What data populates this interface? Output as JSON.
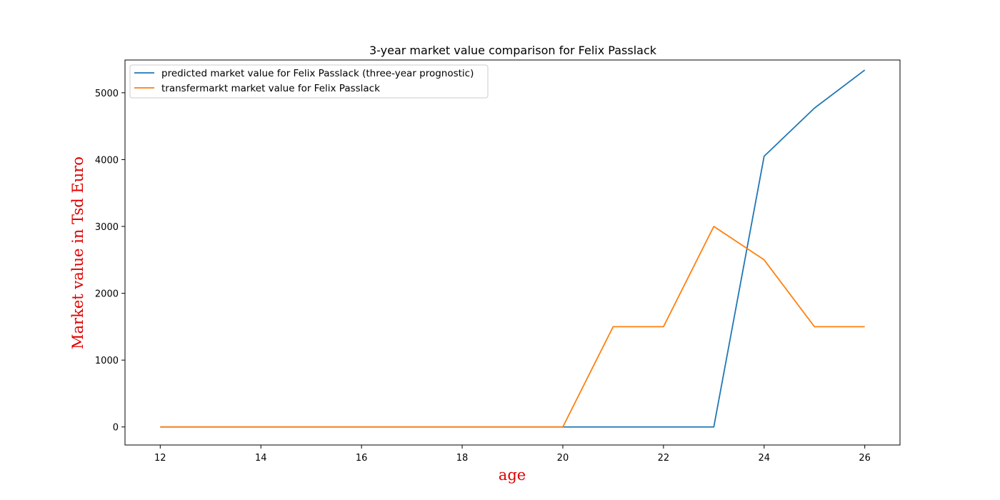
{
  "chart_data": {
    "type": "line",
    "title": "3-year market value comparison for Felix Passlack",
    "xlabel": "age",
    "ylabel": "Market value in Tsd Euro",
    "xlim": [
      11.3,
      26.7
    ],
    "ylim": [
      -270,
      5490
    ],
    "xticks": [
      12,
      14,
      16,
      18,
      20,
      22,
      24,
      26
    ],
    "yticks": [
      0,
      1000,
      2000,
      3000,
      4000,
      5000
    ],
    "grid": false,
    "legend_position": "top-left",
    "x": [
      12,
      13,
      14,
      15,
      16,
      17,
      18,
      19,
      20,
      21,
      22,
      23,
      24,
      25,
      26
    ],
    "series": [
      {
        "name": "predicted market value for Felix Passlack (three-year prognostic)",
        "color": "#1f77b4",
        "values": [
          0,
          0,
          0,
          0,
          0,
          0,
          0,
          0,
          0,
          0,
          0,
          0,
          4050,
          4770,
          5340
        ]
      },
      {
        "name": "transfermarkt market value for Felix Passlack",
        "color": "#ff7f0e",
        "values": [
          0,
          0,
          0,
          0,
          0,
          0,
          0,
          0,
          0,
          1500,
          1500,
          3000,
          2500,
          1500,
          1500
        ]
      }
    ]
  }
}
